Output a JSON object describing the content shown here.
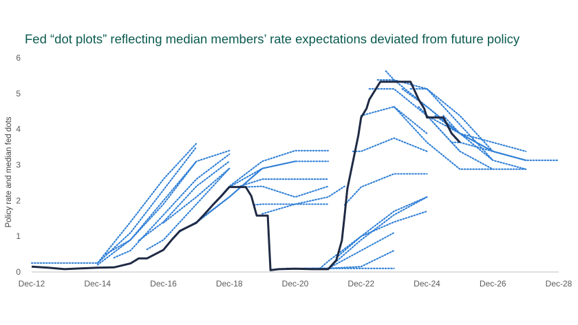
{
  "chart_data": {
    "type": "line",
    "title": "Fed “dot plots” reflecting median members’ rate expectations deviated from future policy",
    "xlabel": "",
    "ylabel": "Policy rate and median fed dots",
    "xlim": [
      "2012-12",
      "2028-12"
    ],
    "ylim": [
      0,
      6
    ],
    "y_ticks": [
      0,
      1,
      2,
      3,
      4,
      5,
      6
    ],
    "x_tick_labels": [
      "Dec-12",
      "Dec-14",
      "Dec-16",
      "Dec-18",
      "Dec-20",
      "Dec-22",
      "Dec-24",
      "Dec-26",
      "Dec-28"
    ],
    "grid": false,
    "legend": "none",
    "colors": {
      "policy": "#1f2a44",
      "dots": "#2f7fd6",
      "title": "#0a5a4f"
    },
    "policy_rate": {
      "x": [
        "2012-12",
        "2013-06",
        "2013-12",
        "2014-06",
        "2014-12",
        "2015-06",
        "2015-12",
        "2016-03",
        "2016-06",
        "2016-12",
        "2017-03",
        "2017-06",
        "2017-12",
        "2018-03",
        "2018-06",
        "2018-09",
        "2018-12",
        "2019-06",
        "2019-08",
        "2019-10",
        "2020-02",
        "2020-03",
        "2020-06",
        "2020-12",
        "2021-06",
        "2021-12",
        "2022-03",
        "2022-05",
        "2022-06",
        "2022-07",
        "2022-09",
        "2022-11",
        "2022-12",
        "2023-02",
        "2023-03",
        "2023-05",
        "2023-07",
        "2023-12",
        "2024-06",
        "2024-09",
        "2024-11",
        "2024-12",
        "2025-06",
        "2025-09",
        "2025-12"
      ],
      "y": [
        0.15,
        0.12,
        0.08,
        0.1,
        0.12,
        0.13,
        0.24,
        0.38,
        0.38,
        0.62,
        0.9,
        1.15,
        1.38,
        1.62,
        1.88,
        2.12,
        2.38,
        2.38,
        2.13,
        1.58,
        1.58,
        0.05,
        0.08,
        0.09,
        0.08,
        0.08,
        0.33,
        0.88,
        1.58,
        2.33,
        3.08,
        3.83,
        4.33,
        4.58,
        4.83,
        5.08,
        5.33,
        5.33,
        5.33,
        4.83,
        4.58,
        4.33,
        4.33,
        3.88,
        3.63
      ]
    },
    "dot_series": [
      {
        "x": [
          "2012-12",
          "2014-12",
          "2015-12",
          "2016-12",
          "2017-12"
        ],
        "y": [
          0.25,
          0.25,
          1.4,
          2.6,
          3.6
        ]
      },
      {
        "x": [
          "2014-12",
          "2015-12",
          "2016-12",
          "2017-12"
        ],
        "y": [
          0.25,
          1.1,
          2.3,
          3.5
        ]
      },
      {
        "x": [
          "2014-12",
          "2015-12",
          "2016-12",
          "2017-12"
        ],
        "y": [
          0.2,
          0.9,
          1.9,
          3.1
        ]
      },
      {
        "x": [
          "2015-03",
          "2015-12",
          "2016-12",
          "2017-12",
          "2018-12"
        ],
        "y": [
          0.5,
          0.9,
          2.0,
          3.1,
          3.4
        ]
      },
      {
        "x": [
          "2015-06",
          "2015-12",
          "2016-12",
          "2017-12",
          "2018-12"
        ],
        "y": [
          0.4,
          0.6,
          1.6,
          2.6,
          3.3
        ]
      },
      {
        "x": [
          "2016-03",
          "2016-12",
          "2017-12",
          "2018-12"
        ],
        "y": [
          0.88,
          1.4,
          2.4,
          3.1
        ]
      },
      {
        "x": [
          "2016-06",
          "2016-12",
          "2017-12",
          "2018-12"
        ],
        "y": [
          0.63,
          0.9,
          1.9,
          2.9
        ]
      },
      {
        "x": [
          "2016-12",
          "2017-12",
          "2018-12"
        ],
        "y": [
          1.38,
          2.1,
          2.9
        ]
      },
      {
        "x": [
          "2017-06",
          "2017-12",
          "2018-12",
          "2019-12"
        ],
        "y": [
          1.13,
          1.4,
          2.1,
          2.9
        ]
      },
      {
        "x": [
          "2017-12",
          "2018-12",
          "2019-12",
          "2020-12"
        ],
        "y": [
          1.38,
          2.1,
          2.9,
          3.1
        ]
      },
      {
        "x": [
          "2018-06",
          "2018-12",
          "2019-12",
          "2020-12",
          "2021-12"
        ],
        "y": [
          1.88,
          2.4,
          3.1,
          3.4,
          3.4
        ]
      },
      {
        "x": [
          "2018-12",
          "2019-12",
          "2020-12",
          "2021-12"
        ],
        "y": [
          2.38,
          2.9,
          3.1,
          3.1
        ]
      },
      {
        "x": [
          "2019-03",
          "2019-12",
          "2020-12",
          "2021-12"
        ],
        "y": [
          2.38,
          2.6,
          2.6,
          2.6
        ]
      },
      {
        "x": [
          "2019-06",
          "2019-12",
          "2020-12",
          "2021-12"
        ],
        "y": [
          2.38,
          2.4,
          2.1,
          2.4
        ]
      },
      {
        "x": [
          "2019-09",
          "2019-12",
          "2020-12",
          "2021-12"
        ],
        "y": [
          1.88,
          1.9,
          1.9,
          1.9
        ]
      },
      {
        "x": [
          "2019-12",
          "2020-12",
          "2021-12",
          "2022-06"
        ],
        "y": [
          1.63,
          1.9,
          2.1,
          2.4
        ]
      },
      {
        "x": [
          "2020-09",
          "2021-12",
          "2022-12",
          "2023-12"
        ],
        "y": [
          0.1,
          0.1,
          0.1,
          0.1
        ]
      },
      {
        "x": [
          "2021-03",
          "2021-12",
          "2022-12",
          "2023-12"
        ],
        "y": [
          0.1,
          0.1,
          0.15,
          0.6
        ]
      },
      {
        "x": [
          "2021-06",
          "2021-12",
          "2022-12",
          "2023-12"
        ],
        "y": [
          0.1,
          0.1,
          0.6,
          1.1
        ]
      },
      {
        "x": [
          "2021-09",
          "2021-12",
          "2022-12",
          "2023-12",
          "2024-12"
        ],
        "y": [
          0.1,
          0.3,
          1.0,
          1.7,
          2.1
        ]
      },
      {
        "x": [
          "2021-12",
          "2022-12",
          "2023-12",
          "2024-12"
        ],
        "y": [
          0.1,
          0.9,
          1.6,
          2.1
        ]
      },
      {
        "x": [
          "2022-03",
          "2022-12",
          "2023-12",
          "2024-12"
        ],
        "y": [
          0.4,
          1.0,
          1.4,
          1.7
        ]
      },
      {
        "x": [
          "2022-06",
          "2022-12",
          "2023-12",
          "2024-12"
        ],
        "y": [
          1.88,
          2.38,
          2.75,
          2.75
        ]
      },
      {
        "x": [
          "2022-09",
          "2022-12",
          "2023-12",
          "2024-12"
        ],
        "y": [
          3.38,
          3.38,
          3.75,
          3.38
        ]
      },
      {
        "x": [
          "2022-12",
          "2023-12",
          "2024-12"
        ],
        "y": [
          4.38,
          4.63,
          3.88
        ]
      },
      {
        "x": [
          "2023-03",
          "2023-12",
          "2024-12",
          "2025-12"
        ],
        "y": [
          5.13,
          5.13,
          4.38,
          3.38
        ]
      },
      {
        "x": [
          "2023-06",
          "2023-12",
          "2024-12",
          "2025-12"
        ],
        "y": [
          5.38,
          5.38,
          4.63,
          3.88
        ]
      },
      {
        "x": [
          "2023-09",
          "2023-12",
          "2024-12",
          "2025-12",
          "2026-12"
        ],
        "y": [
          5.63,
          5.38,
          5.13,
          4.38,
          3.38
        ]
      },
      {
        "x": [
          "2023-12",
          "2024-12",
          "2025-12",
          "2026-12"
        ],
        "y": [
          4.63,
          3.63,
          2.88,
          2.88
        ]
      },
      {
        "x": [
          "2024-03",
          "2024-12",
          "2025-12",
          "2026-12"
        ],
        "y": [
          5.13,
          4.63,
          3.88,
          3.13
        ]
      },
      {
        "x": [
          "2024-06",
          "2024-12",
          "2025-12",
          "2026-12",
          "2027-12"
        ],
        "y": [
          5.13,
          5.13,
          4.13,
          3.13,
          2.88
        ]
      },
      {
        "x": [
          "2024-09",
          "2024-12",
          "2025-12",
          "2026-12",
          "2027-12"
        ],
        "y": [
          4.63,
          4.38,
          3.38,
          2.88,
          2.88
        ]
      },
      {
        "x": [
          "2024-12",
          "2025-12",
          "2026-12",
          "2027-12"
        ],
        "y": [
          4.38,
          3.88,
          3.38,
          3.13
        ]
      },
      {
        "x": [
          "2025-03",
          "2025-12",
          "2026-12",
          "2027-12"
        ],
        "y": [
          4.38,
          3.88,
          3.38,
          3.13
        ]
      },
      {
        "x": [
          "2025-06",
          "2025-12",
          "2026-12",
          "2027-12"
        ],
        "y": [
          4.38,
          3.88,
          3.63,
          3.38
        ]
      },
      {
        "x": [
          "2025-09",
          "2025-12",
          "2026-12",
          "2027-12",
          "2028-12"
        ],
        "y": [
          3.63,
          3.63,
          3.38,
          3.13,
          3.13
        ]
      }
    ]
  }
}
